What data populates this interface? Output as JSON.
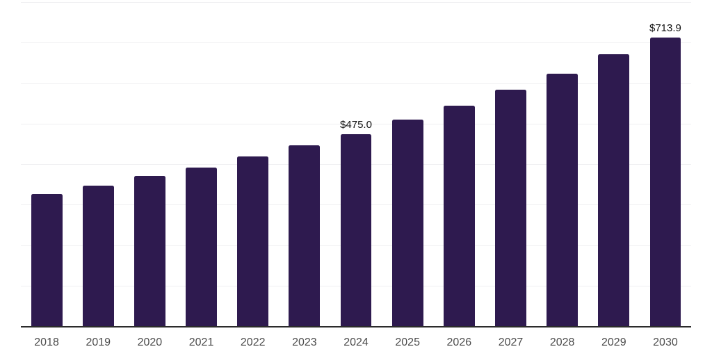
{
  "page": {
    "background": "#ffffff"
  },
  "colors": {
    "bar": "#2e1a4f",
    "grid_line": "#f0f0f2",
    "axis_line": "#2b2b2b",
    "tick_label": "#4c4c4c",
    "data_label": "#111111"
  },
  "chart_data": {
    "type": "bar",
    "title": "",
    "xlabel": "",
    "ylabel": "",
    "categories": [
      "2018",
      "2019",
      "2020",
      "2021",
      "2022",
      "2023",
      "2024",
      "2025",
      "2026",
      "2027",
      "2028",
      "2029",
      "2030"
    ],
    "values": [
      328.0,
      348.5,
      372.0,
      393.0,
      420.5,
      448.0,
      475.0,
      511.0,
      545.5,
      585.0,
      624.5,
      672.5,
      713.9
    ],
    "data_labels": [
      {
        "category": "2024",
        "text": "$475.0"
      },
      {
        "category": "2030",
        "text": "$713.9"
      }
    ],
    "ylim": [
      0,
      800
    ],
    "grid_step": 100,
    "grid": true,
    "legend_position": "none",
    "y_axis_tick_labels_visible": false
  }
}
